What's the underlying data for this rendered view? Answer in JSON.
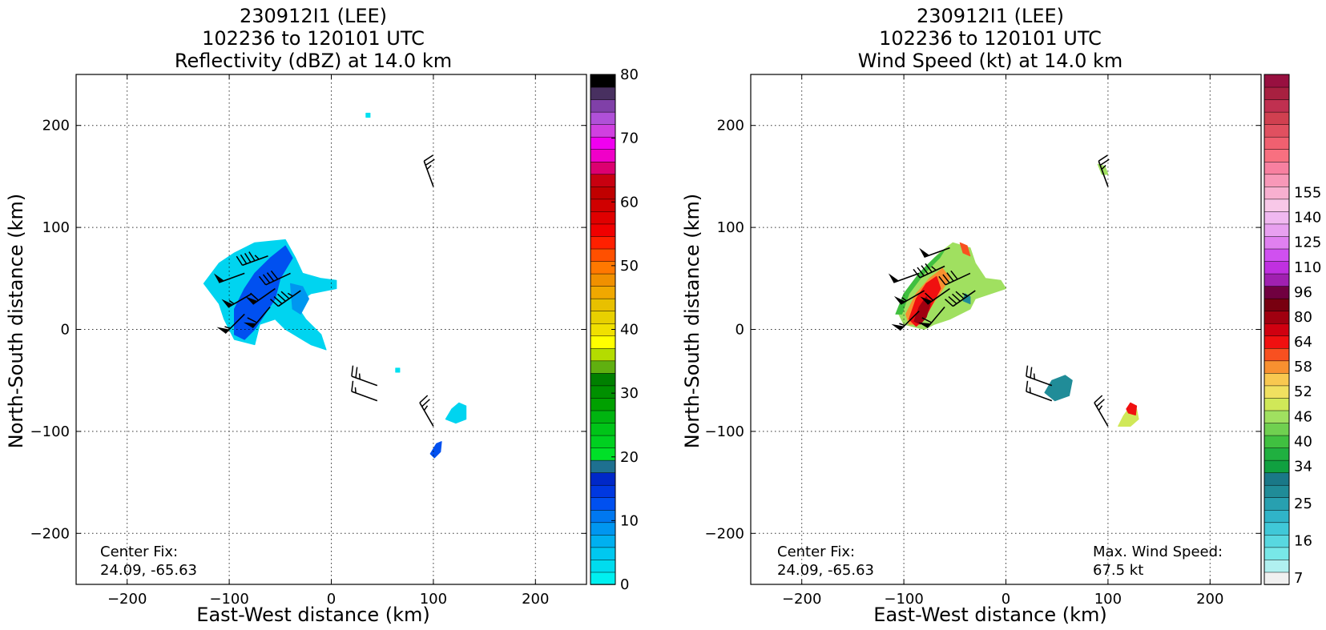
{
  "chart_data": [
    {
      "type": "heatmap",
      "title": [
        "230912I1 (LEE)",
        "102236 to 120101 UTC",
        "Reflectivity (dBZ) at 14.0 km"
      ],
      "xlabel": "East-West distance (km)",
      "ylabel": "North-South distance (km)",
      "xlim": [
        -250,
        250
      ],
      "ylim": [
        -250,
        250
      ],
      "xticks": [
        -200,
        -100,
        0,
        100,
        200
      ],
      "yticks": [
        -200,
        -100,
        0,
        100,
        200
      ],
      "grid": true,
      "annotation": [
        "Center Fix:",
        "24.09, -65.63"
      ],
      "colorbar": {
        "range": [
          0,
          80
        ],
        "tick_values": [
          0,
          10,
          20,
          30,
          40,
          50,
          60,
          70,
          80
        ],
        "tick_labels": [
          "0",
          "10",
          "20",
          "30",
          "40",
          "50",
          "60",
          "70",
          "80"
        ],
        "colors": [
          "#00f0f0",
          "#00dcee",
          "#00c8f0",
          "#00b0f0",
          "#0096f0",
          "#0078f0",
          "#0050f0",
          "#0038e0",
          "#0028c8",
          "#1e7090",
          "#00e028",
          "#00d020",
          "#00c418",
          "#00b410",
          "#00a000",
          "#009000",
          "#008000",
          "#60b010",
          "#b4dc00",
          "#ffff00",
          "#f0e000",
          "#e8d000",
          "#e8c000",
          "#f0a800",
          "#f09000",
          "#ff7800",
          "#ff5000",
          "#ff2000",
          "#f00000",
          "#e00000",
          "#d00000",
          "#c00000",
          "#c80010",
          "#dc0070",
          "#f000c8",
          "#f000f0",
          "#d040e0",
          "#b050d8",
          "#8040a8",
          "#483060",
          "#000000"
        ]
      },
      "regions": [
        {
          "name": "main-echo",
          "value_dbz": 8,
          "color": "#00d4f0",
          "polygon": [
            [
              -125,
              45
            ],
            [
              -110,
              65
            ],
            [
              -95,
              75
            ],
            [
              -75,
              85
            ],
            [
              -45,
              88
            ],
            [
              -35,
              70
            ],
            [
              -28,
              55
            ],
            [
              -10,
              50
            ],
            [
              5,
              48
            ],
            [
              5,
              40
            ],
            [
              -20,
              35
            ],
            [
              -35,
              25
            ],
            [
              -25,
              10
            ],
            [
              -10,
              -5
            ],
            [
              -5,
              -20
            ],
            [
              -20,
              -15
            ],
            [
              -45,
              0
            ],
            [
              -55,
              10
            ],
            [
              -70,
              5
            ],
            [
              -75,
              -15
            ],
            [
              -95,
              -10
            ],
            [
              -105,
              10
            ],
            [
              -110,
              25
            ]
          ]
        },
        {
          "name": "main-echo-core",
          "value_dbz": 13,
          "color": "#0050f0",
          "polygon": [
            [
              -95,
              20
            ],
            [
              -85,
              40
            ],
            [
              -75,
              55
            ],
            [
              -60,
              70
            ],
            [
              -45,
              82
            ],
            [
              -38,
              70
            ],
            [
              -50,
              50
            ],
            [
              -55,
              30
            ],
            [
              -65,
              15
            ],
            [
              -75,
              0
            ],
            [
              -85,
              -10
            ],
            [
              -95,
              -5
            ]
          ]
        },
        {
          "name": "east-echo-core",
          "value_dbz": 11,
          "color": "#0096f0",
          "polygon": [
            [
              -40,
              45
            ],
            [
              -28,
              42
            ],
            [
              -22,
              30
            ],
            [
              -30,
              15
            ],
            [
              -38,
              20
            ]
          ]
        },
        {
          "name": "blob-se",
          "value_dbz": 6,
          "color": "#00d4f0",
          "polygon": [
            [
              112,
              -88
            ],
            [
              118,
              -78
            ],
            [
              125,
              -72
            ],
            [
              132,
              -75
            ],
            [
              132,
              -88
            ],
            [
              122,
              -92
            ]
          ]
        },
        {
          "name": "blob-south",
          "value_dbz": 12,
          "color": "#0050f0",
          "polygon": [
            [
              97,
              -122
            ],
            [
              103,
              -112
            ],
            [
              108,
              -110
            ],
            [
              107,
              -120
            ],
            [
              101,
              -126
            ]
          ]
        },
        {
          "name": "speck-north",
          "value_dbz": 5,
          "color": "#00e0f0",
          "polygon": [
            [
              34,
              212
            ],
            [
              38,
              212
            ],
            [
              38,
              208
            ],
            [
              34,
              208
            ]
          ]
        },
        {
          "name": "speck-center",
          "value_dbz": 5,
          "color": "#00e0f0",
          "polygon": [
            [
              63,
              -38
            ],
            [
              67,
              -38
            ],
            [
              67,
              -42
            ],
            [
              63,
              -42
            ]
          ]
        }
      ],
      "wind_barbs": [
        {
          "x": -85,
          "y": 55,
          "dir_deg": 250,
          "kt": 50
        },
        {
          "x": -62,
          "y": 72,
          "dir_deg": 250,
          "kt": 45
        },
        {
          "x": -40,
          "y": 55,
          "dir_deg": 245,
          "kt": 40
        },
        {
          "x": -78,
          "y": 35,
          "dir_deg": 240,
          "kt": 55
        },
        {
          "x": -55,
          "y": 40,
          "dir_deg": 235,
          "kt": 60
        },
        {
          "x": -30,
          "y": 38,
          "dir_deg": 235,
          "kt": 45
        },
        {
          "x": -85,
          "y": 15,
          "dir_deg": 225,
          "kt": 55
        },
        {
          "x": -60,
          "y": 22,
          "dir_deg": 220,
          "kt": 60
        },
        {
          "x": 100,
          "y": 140,
          "dir_deg": 340,
          "kt": 25
        },
        {
          "x": 45,
          "y": -55,
          "dir_deg": 290,
          "kt": 25
        },
        {
          "x": 45,
          "y": -70,
          "dir_deg": 290,
          "kt": 15
        },
        {
          "x": 100,
          "y": -95,
          "dir_deg": 330,
          "kt": 25
        }
      ]
    },
    {
      "type": "heatmap",
      "title": [
        "230912I1 (LEE)",
        "102236 to 120101 UTC",
        "Wind Speed (kt) at 14.0 km"
      ],
      "xlabel": "East-West distance (km)",
      "ylabel": "North-South distance (km)",
      "xlim": [
        -250,
        250
      ],
      "ylim": [
        -250,
        250
      ],
      "xticks": [
        -200,
        -100,
        0,
        100,
        200
      ],
      "yticks": [
        -200,
        -100,
        0,
        100,
        200
      ],
      "grid": true,
      "annotation": [
        "Center Fix:",
        "24.09, -65.63"
      ],
      "annotation_right": [
        "Max. Wind Speed:",
        "67.5 kt"
      ],
      "colorbar": {
        "tick_labels": [
          "7",
          "16",
          "25",
          "34",
          "40",
          "46",
          "52",
          "58",
          "64",
          "80",
          "96",
          "110",
          "125",
          "140",
          "155"
        ],
        "tick_bins": [
          0,
          3,
          6,
          9,
          11,
          13,
          15,
          17,
          19,
          21,
          23,
          25,
          27,
          29,
          31
        ],
        "colors": [
          "#f0f0f0",
          "#b0f0f0",
          "#78e8e8",
          "#58d8e0",
          "#40c8d8",
          "#30b4c8",
          "#28a0b0",
          "#208c98",
          "#1a7888",
          "#10a040",
          "#20b040",
          "#40c040",
          "#70d050",
          "#a0e060",
          "#d0e858",
          "#f0e060",
          "#f8c850",
          "#f89030",
          "#f85020",
          "#f01010",
          "#d00010",
          "#a00010",
          "#780010",
          "#700040",
          "#a020b0",
          "#c030e0",
          "#d050f0",
          "#e080f0",
          "#e8a0f0",
          "#f0b8f0",
          "#f8c8e8",
          "#f8b0d0",
          "#f898b8",
          "#f880a0",
          "#f87080",
          "#f06070",
          "#e05060",
          "#d04050",
          "#c03050",
          "#a82040",
          "#981040"
        ]
      },
      "regions": [
        {
          "name": "outer-band",
          "value_kt": 40,
          "color": "#a0e060",
          "polygon": [
            [
              -105,
              15
            ],
            [
              -95,
              40
            ],
            [
              -80,
              60
            ],
            [
              -65,
              75
            ],
            [
              -52,
              85
            ],
            [
              -35,
              80
            ],
            [
              -30,
              65
            ],
            [
              -20,
              50
            ],
            [
              -5,
              48
            ],
            [
              0,
              40
            ],
            [
              -15,
              35
            ],
            [
              -30,
              30
            ],
            [
              -35,
              20
            ],
            [
              -45,
              15
            ],
            [
              -55,
              10
            ],
            [
              -70,
              5
            ],
            [
              -80,
              0
            ],
            [
              -100,
              5
            ]
          ]
        },
        {
          "name": "green-edge",
          "value_kt": 34,
          "color": "#40c040",
          "polygon": [
            [
              -108,
              15
            ],
            [
              -100,
              35
            ],
            [
              -85,
              55
            ],
            [
              -70,
              70
            ],
            [
              -60,
              78
            ],
            [
              -65,
              70
            ],
            [
              -80,
              55
            ],
            [
              -95,
              35
            ],
            [
              -102,
              15
            ]
          ]
        },
        {
          "name": "orange-band",
          "value_kt": 52,
          "color": "#f89030",
          "polygon": [
            [
              -98,
              15
            ],
            [
              -88,
              35
            ],
            [
              -75,
              50
            ],
            [
              -62,
              60
            ],
            [
              -55,
              50
            ],
            [
              -65,
              35
            ],
            [
              -75,
              20
            ],
            [
              -85,
              5
            ],
            [
              -95,
              5
            ]
          ]
        },
        {
          "name": "core-red",
          "value_kt": 58,
          "color": "#f01010",
          "polygon": [
            [
              -95,
              10
            ],
            [
              -88,
              30
            ],
            [
              -78,
              45
            ],
            [
              -68,
              52
            ],
            [
              -64,
              40
            ],
            [
              -72,
              25
            ],
            [
              -80,
              10
            ],
            [
              -88,
              3
            ]
          ]
        },
        {
          "name": "core-dark",
          "value_kt": 62,
          "color": "#a00010",
          "polygon": [
            [
              -90,
              8
            ],
            [
              -85,
              22
            ],
            [
              -78,
              32
            ],
            [
              -74,
              25
            ],
            [
              -78,
              12
            ],
            [
              -84,
              5
            ]
          ]
        },
        {
          "name": "red-tail",
          "value_kt": 55,
          "color": "#f85020",
          "polygon": [
            [
              -45,
              85
            ],
            [
              -38,
              82
            ],
            [
              -35,
              72
            ],
            [
              -42,
              75
            ]
          ]
        },
        {
          "name": "teal-mini",
          "value_kt": 25,
          "color": "#208c98",
          "polygon": [
            [
              -40,
              35
            ],
            [
              -35,
              32
            ],
            [
              -35,
              25
            ],
            [
              -42,
              28
            ]
          ]
        },
        {
          "name": "teal-blob",
          "value_kt": 25,
          "color": "#208c98",
          "polygon": [
            [
              38,
              -62
            ],
            [
              45,
              -50
            ],
            [
              58,
              -45
            ],
            [
              65,
              -50
            ],
            [
              62,
              -65
            ],
            [
              48,
              -70
            ]
          ]
        },
        {
          "name": "yellow-blob",
          "value_kt": 45,
          "color": "#d0e858",
          "polygon": [
            [
              110,
              -95
            ],
            [
              115,
              -85
            ],
            [
              122,
              -75
            ],
            [
              128,
              -78
            ],
            [
              130,
              -88
            ],
            [
              122,
              -95
            ]
          ]
        },
        {
          "name": "red-blob",
          "value_kt": 55,
          "color": "#f01010",
          "polygon": [
            [
              118,
              -78
            ],
            [
              122,
              -72
            ],
            [
              128,
              -75
            ],
            [
              127,
              -84
            ],
            [
              120,
              -82
            ]
          ]
        },
        {
          "name": "speck-top",
          "value_kt": 40,
          "color": "#a0e060",
          "polygon": [
            [
              90,
              162
            ],
            [
              97,
              160
            ],
            [
              100,
              152
            ],
            [
              94,
              152
            ]
          ]
        }
      ],
      "wind_barbs": [
        {
          "x": -55,
          "y": 80,
          "dir_deg": 250,
          "kt": 50
        },
        {
          "x": -85,
          "y": 55,
          "dir_deg": 250,
          "kt": 50
        },
        {
          "x": -60,
          "y": 62,
          "dir_deg": 245,
          "kt": 45
        },
        {
          "x": -35,
          "y": 55,
          "dir_deg": 245,
          "kt": 40
        },
        {
          "x": -80,
          "y": 38,
          "dir_deg": 240,
          "kt": 55
        },
        {
          "x": -55,
          "y": 40,
          "dir_deg": 235,
          "kt": 60
        },
        {
          "x": -30,
          "y": 38,
          "dir_deg": 235,
          "kt": 45
        },
        {
          "x": -85,
          "y": 18,
          "dir_deg": 225,
          "kt": 55
        },
        {
          "x": -60,
          "y": 22,
          "dir_deg": 220,
          "kt": 60
        },
        {
          "x": 100,
          "y": 140,
          "dir_deg": 340,
          "kt": 25
        },
        {
          "x": 45,
          "y": -55,
          "dir_deg": 290,
          "kt": 25
        },
        {
          "x": 45,
          "y": -70,
          "dir_deg": 290,
          "kt": 15
        },
        {
          "x": 100,
          "y": -95,
          "dir_deg": 330,
          "kt": 25
        }
      ]
    }
  ]
}
